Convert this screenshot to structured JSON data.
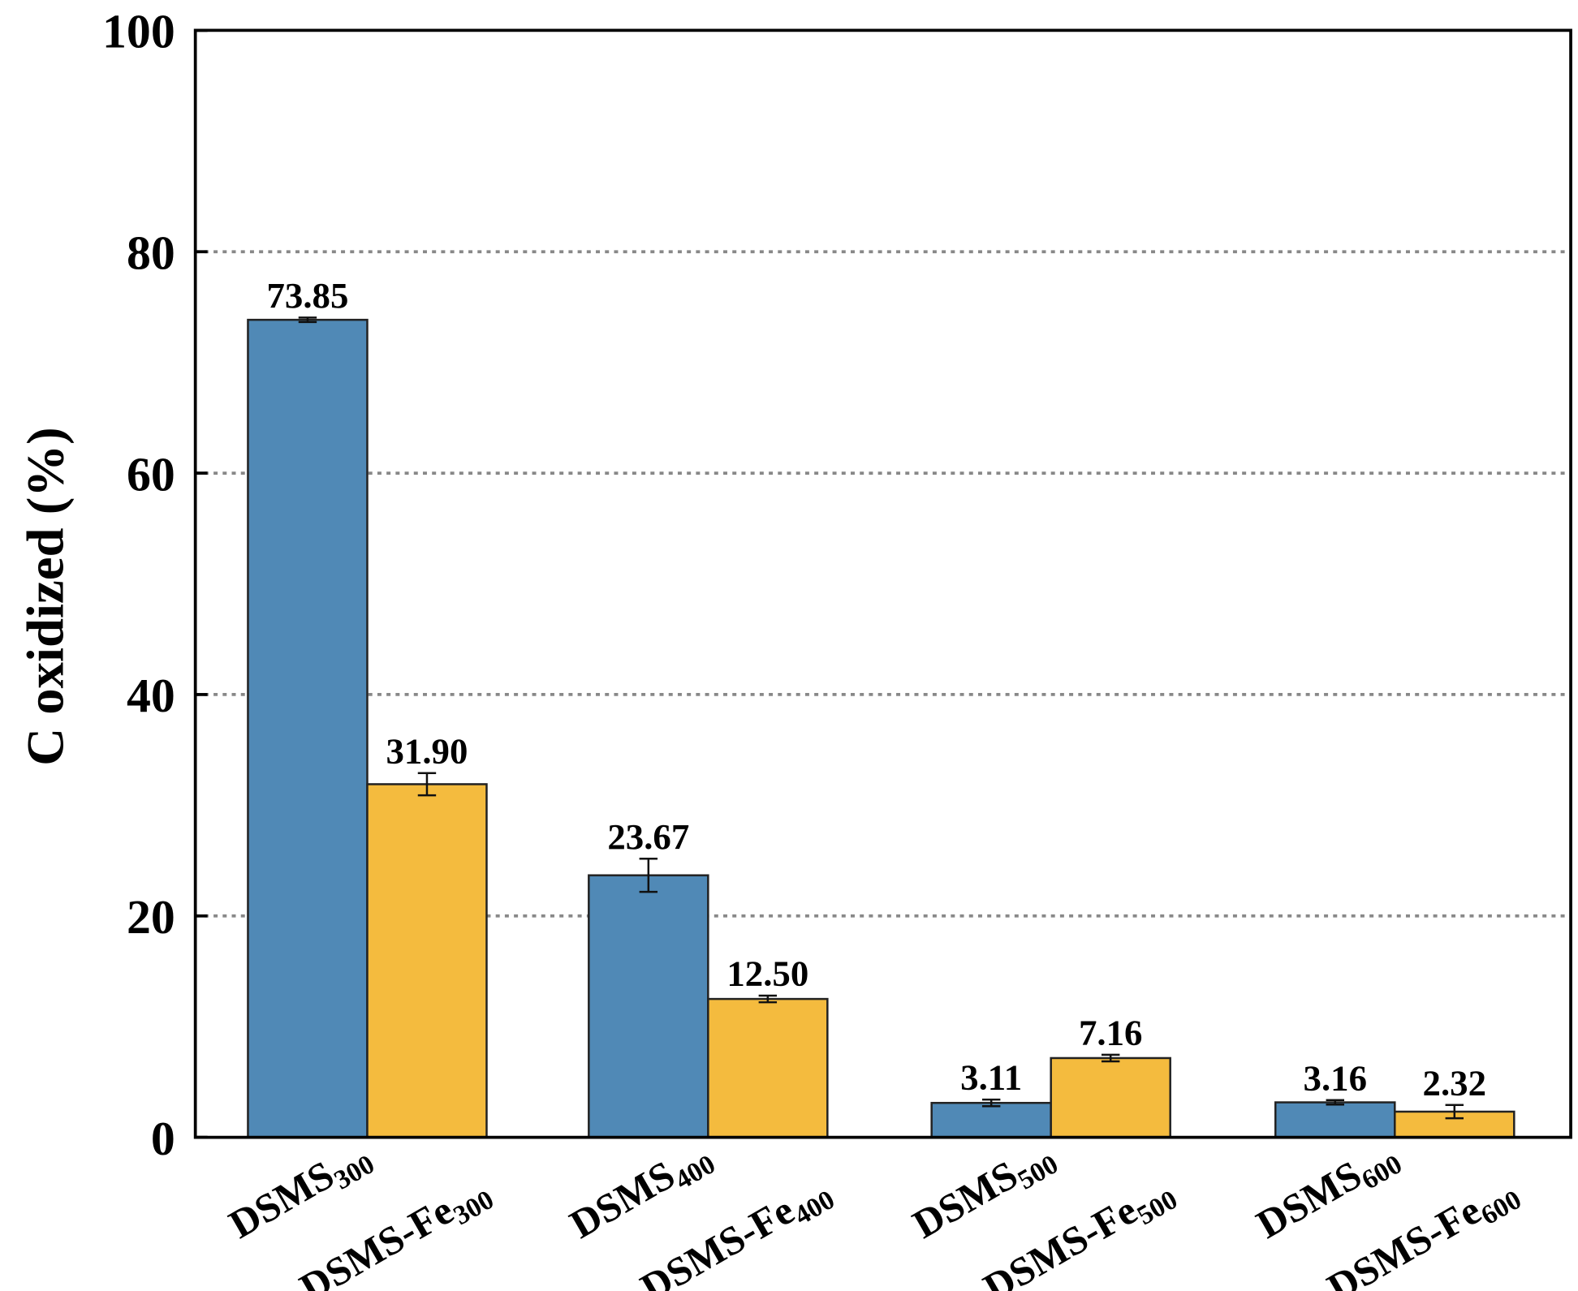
{
  "chart_data": {
    "type": "bar",
    "title": "",
    "xlabel": "",
    "ylabel": "C oxidized (%)",
    "ylim": [
      0,
      100
    ],
    "yticks": [
      0,
      20,
      40,
      60,
      80,
      100
    ],
    "grid": "horizontal dotted at y ticks",
    "legend": "none",
    "categories": [
      {
        "a": {
          "base": "DSMS",
          "sub": "300"
        },
        "b": {
          "base": "DSMS-Fe",
          "sub": "300"
        }
      },
      {
        "a": {
          "base": "DSMS",
          "sub": "400"
        },
        "b": {
          "base": "DSMS-Fe",
          "sub": "400"
        }
      },
      {
        "a": {
          "base": "DSMS",
          "sub": "500"
        },
        "b": {
          "base": "DSMS-Fe",
          "sub": "500"
        }
      },
      {
        "a": {
          "base": "DSMS",
          "sub": "600"
        },
        "b": {
          "base": "DSMS-Fe",
          "sub": "600"
        }
      }
    ],
    "series": [
      {
        "color": "#5089b6",
        "values": [
          73.85,
          23.67,
          3.11,
          3.16
        ],
        "errors": [
          0.2,
          1.5,
          0.3,
          0.2
        ],
        "labels": [
          "73.85",
          "23.67",
          "3.11",
          "3.16"
        ]
      },
      {
        "color": "#f4bb3e",
        "values": [
          31.9,
          12.5,
          7.16,
          2.32
        ],
        "errors": [
          1.0,
          0.3,
          0.3,
          0.6
        ],
        "labels": [
          "31.90",
          "12.50",
          "7.16",
          "2.32"
        ]
      }
    ]
  }
}
